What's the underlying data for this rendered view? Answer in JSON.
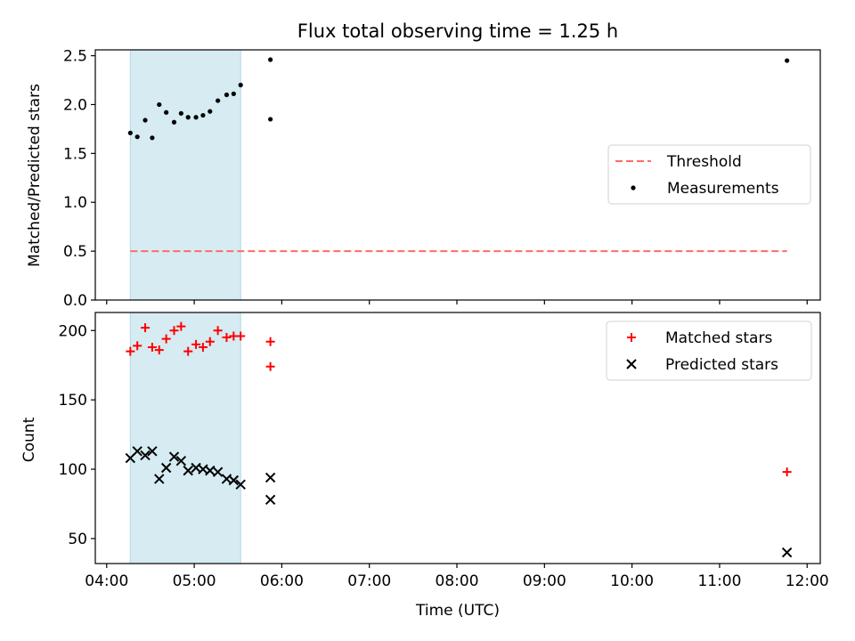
{
  "chart_data": [
    {
      "type": "scatter",
      "title": "Flux total observing time = 1.25 h",
      "xlabel": "",
      "ylabel": "Matched/Predicted stars",
      "ylim": [
        0,
        2.56
      ],
      "yticks": [
        0.0,
        0.5,
        1.0,
        1.5,
        2.0,
        2.5
      ],
      "ytick_labels": [
        "0.0",
        "0.5",
        "1.0",
        "1.5",
        "2.0",
        "2.5"
      ],
      "x_axis": "Time (UTC), hours",
      "xlim": [
        3.87,
        12.15
      ],
      "highlight_span": {
        "start": 4.27,
        "end": 5.53,
        "color": "#add8e6"
      },
      "legend_location": "center-right",
      "series": [
        {
          "name": "Threshold",
          "kind": "line",
          "style": "dashed",
          "color": "#ff6b6b",
          "x": [
            4.27,
            11.77
          ],
          "y": [
            0.5,
            0.5
          ]
        },
        {
          "name": "Measurements",
          "kind": "scatter",
          "marker": "dot",
          "color": "#000000",
          "x": [
            4.27,
            4.35,
            4.44,
            4.52,
            4.6,
            4.68,
            4.77,
            4.85,
            4.93,
            5.02,
            5.1,
            5.18,
            5.27,
            5.37,
            5.45,
            5.53,
            5.87,
            5.87,
            11.77
          ],
          "y": [
            1.71,
            1.67,
            1.84,
            1.66,
            2.0,
            1.92,
            1.82,
            1.91,
            1.87,
            1.87,
            1.89,
            1.93,
            2.04,
            2.1,
            2.11,
            2.2,
            2.46,
            1.85,
            2.45
          ]
        }
      ]
    },
    {
      "type": "scatter",
      "title": "",
      "xlabel": "Time (UTC)",
      "ylabel": "Count",
      "ylim": [
        32,
        213
      ],
      "yticks": [
        50,
        100,
        150,
        200
      ],
      "ytick_labels": [
        "50",
        "100",
        "150",
        "200"
      ],
      "xlim": [
        3.87,
        12.15
      ],
      "xticks": [
        4,
        5,
        6,
        7,
        8,
        9,
        10,
        11,
        12
      ],
      "xtick_labels": [
        "04:00",
        "05:00",
        "06:00",
        "07:00",
        "08:00",
        "09:00",
        "10:00",
        "11:00",
        "12:00"
      ],
      "highlight_span": {
        "start": 4.27,
        "end": 5.53,
        "color": "#add8e6"
      },
      "legend_location": "top-right",
      "series": [
        {
          "name": "Matched stars",
          "kind": "scatter",
          "marker": "plus",
          "color": "#ff0000",
          "x": [
            4.27,
            4.35,
            4.44,
            4.52,
            4.6,
            4.68,
            4.77,
            4.85,
            4.93,
            5.02,
            5.1,
            5.18,
            5.27,
            5.37,
            5.45,
            5.53,
            5.87,
            5.87,
            11.77
          ],
          "y": [
            185,
            189,
            202,
            188,
            186,
            194,
            200,
            203,
            185,
            190,
            188,
            192,
            200,
            195,
            196,
            196,
            192,
            174,
            98
          ]
        },
        {
          "name": "Predicted stars",
          "kind": "scatter",
          "marker": "x",
          "color": "#000000",
          "x": [
            4.27,
            4.35,
            4.44,
            4.52,
            4.6,
            4.68,
            4.77,
            4.85,
            4.93,
            5.02,
            5.1,
            5.18,
            5.27,
            5.37,
            5.45,
            5.53,
            5.87,
            5.87,
            11.77
          ],
          "y": [
            108,
            113,
            110,
            113,
            93,
            101,
            109,
            106,
            99,
            101,
            100,
            99,
            98,
            93,
            92,
            89,
            94,
            78,
            40
          ]
        }
      ]
    }
  ]
}
